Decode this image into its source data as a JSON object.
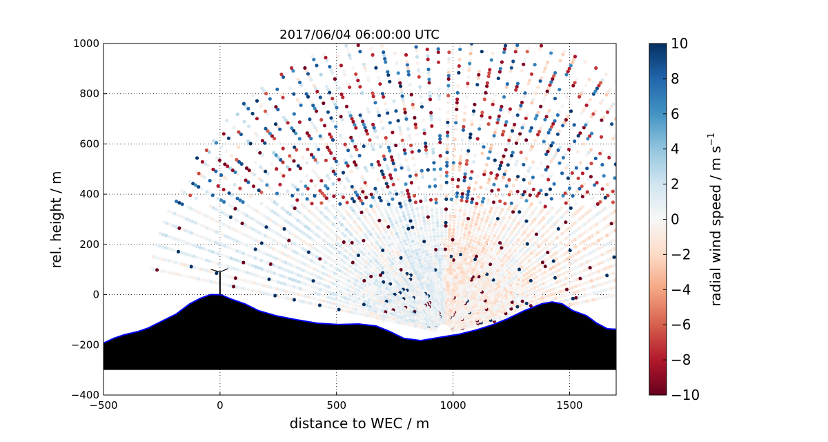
{
  "chart_data": {
    "type": "scatter",
    "title": "2017/06/04 06:00:00 UTC",
    "xlabel": "distance to WEC / m",
    "ylabel": "rel. height / m",
    "xlim": [
      -500,
      1700
    ],
    "ylim": [
      -400,
      1000
    ],
    "xticks": [
      -500,
      0,
      500,
      1000,
      1500
    ],
    "xtick_labels": [
      "−500",
      "0",
      "500",
      "1000",
      "1500"
    ],
    "yticks": [
      -400,
      -200,
      0,
      200,
      400,
      600,
      800,
      1000
    ],
    "ytick_labels": [
      "−400",
      "−200",
      "0",
      "200",
      "400",
      "600",
      "800",
      "1000"
    ],
    "grid": true,
    "colorbar": {
      "label": "radial wind speed / m s",
      "label_exponent": "−1",
      "range": [
        -10,
        10
      ],
      "colormap": "RdBu",
      "ticks": [
        10,
        8,
        6,
        4,
        2,
        0,
        -2,
        -4,
        -6,
        -8,
        -10
      ],
      "tick_labels": [
        "10",
        "8",
        "6",
        "4",
        "2",
        "0",
        "−2",
        "−4",
        "−6",
        "−8",
        "−10"
      ],
      "colors": [
        "#67001f",
        "#b2182b",
        "#d6604d",
        "#f4a582",
        "#fddbc7",
        "#f7f7f7",
        "#d1e5f0",
        "#92c5de",
        "#4393c3",
        "#2166ac",
        "#053061"
      ]
    },
    "scan": {
      "origin": [
        960,
        -150
      ],
      "angle_range_deg": [
        12,
        168
      ],
      "ray_count": 70,
      "range_step_m": 14,
      "max_range_m": 1300
    },
    "terrain": {
      "x": [
        -500,
        -456,
        -411,
        -352,
        -308,
        -248,
        -189,
        -130,
        -85,
        -41,
        3,
        48,
        107,
        166,
        240,
        329,
        418,
        507,
        596,
        670,
        729,
        788,
        862,
        951,
        1025,
        1099,
        1173,
        1232,
        1306,
        1380,
        1425,
        1469,
        1514,
        1573,
        1617,
        1662,
        1700
      ],
      "y": [
        -193,
        -174,
        -160,
        -147,
        -133,
        -105,
        -78,
        -37,
        -15,
        0,
        0,
        -18,
        -37,
        -64,
        -84,
        -100,
        -114,
        -119,
        -117,
        -125,
        -147,
        -174,
        -183,
        -169,
        -158,
        -141,
        -119,
        -97,
        -64,
        -37,
        -29,
        -37,
        -64,
        -84,
        -114,
        -136,
        -138
      ],
      "base": -300,
      "fill": "#000000",
      "outline": "#0000ff"
    },
    "turbine": {
      "x": 0,
      "hub_height": 90,
      "rotor_radius": 45
    }
  }
}
